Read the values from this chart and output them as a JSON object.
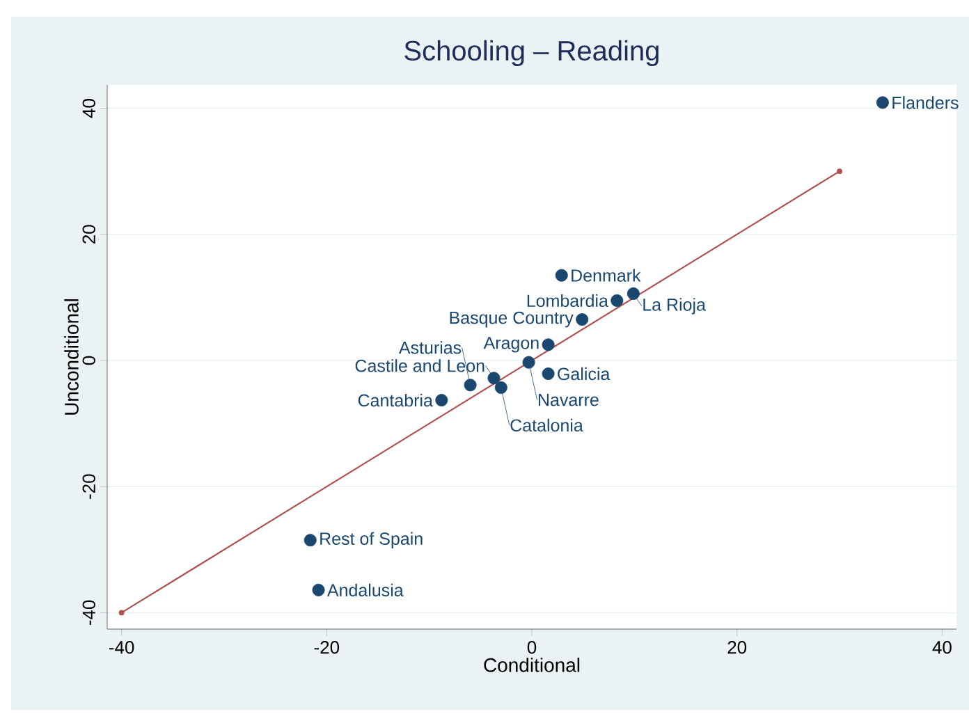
{
  "chart_data": {
    "type": "scatter",
    "title": "Schooling – Reading",
    "xlabel": "Conditional",
    "ylabel": "Unconditional",
    "xlim": [
      -41.4,
      41.4
    ],
    "ylim": [
      -42.6,
      43.7
    ],
    "xticks": [
      -40,
      -20,
      0,
      20,
      40
    ],
    "yticks": [
      -40,
      -20,
      0,
      20,
      40
    ],
    "grid": "y",
    "marker": "circle",
    "series": [
      {
        "color": "#1a476f",
        "x": [
          34.2,
          2.9,
          9.9,
          8.3,
          4.9,
          1.6,
          -0.3,
          1.6,
          -3.7,
          -6.0,
          -3.0,
          -8.8,
          -21.6,
          -20.8
        ],
        "values": [
          40.9,
          13.5,
          10.6,
          9.5,
          6.5,
          2.5,
          -0.3,
          -2.1,
          -2.8,
          -3.9,
          -4.3,
          -6.3,
          -28.5,
          -36.4
        ]
      },
      {
        "type": "line",
        "color": "#b0504f",
        "x": [
          -40,
          30
        ],
        "values": [
          -40,
          30
        ]
      }
    ],
    "annotations": [
      {
        "text": "Flanders",
        "x": 34.2,
        "y": 40.9
      },
      {
        "text": "Denmark",
        "x": 2.9,
        "y": 13.5
      },
      {
        "text": "La Rioja",
        "x": 9.9,
        "y": 10.6
      },
      {
        "text": "Lombardia",
        "x": 8.3,
        "y": 9.5
      },
      {
        "text": "Basque Country",
        "x": 4.9,
        "y": 6.5
      },
      {
        "text": "Aragon",
        "x": 1.6,
        "y": 2.5
      },
      {
        "text": "Navarre",
        "x": -0.3,
        "y": -0.3
      },
      {
        "text": "Galicia",
        "x": 1.6,
        "y": -2.1
      },
      {
        "text": "Castile and Leon",
        "x": -3.7,
        "y": -2.8
      },
      {
        "text": "Asturias",
        "x": -6.0,
        "y": -3.9
      },
      {
        "text": "Catalonia",
        "x": -3.0,
        "y": -4.3
      },
      {
        "text": "Cantabria",
        "x": -8.8,
        "y": -6.3
      },
      {
        "text": "Rest of Spain",
        "x": -21.6,
        "y": -28.5
      },
      {
        "text": "Andalusia",
        "x": -20.8,
        "y": -36.4
      }
    ]
  }
}
